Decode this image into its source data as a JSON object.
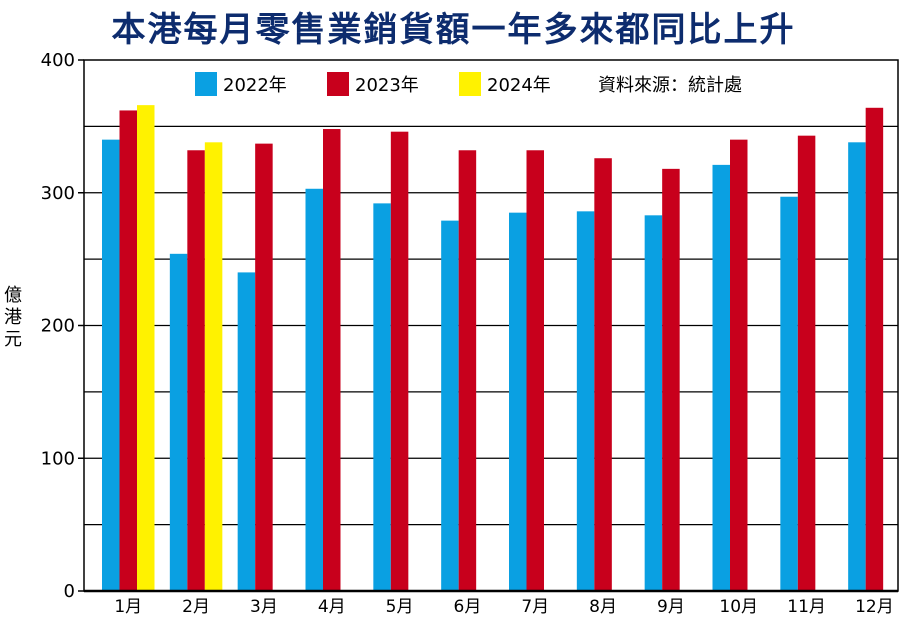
{
  "title": "本港每月零售業銷貨額一年多來都同比上升",
  "colors": {
    "2022年": "#0aa0e2",
    "2023年": "#c8001c",
    "2024年": "#fff200"
  },
  "source_note": "資料來源：統計處",
  "chart_data": {
    "type": "bar",
    "title": "本港每月零售業銷貨額一年多來都同比上升",
    "ylabel": "億港元",
    "xlabel": "",
    "ylim": [
      0,
      400
    ],
    "yticks": [
      0,
      100,
      200,
      300,
      400
    ],
    "grid": true,
    "legend": "top",
    "categories": [
      "1月",
      "2月",
      "3月",
      "4月",
      "5月",
      "6月",
      "7月",
      "8月",
      "9月",
      "10月",
      "11月",
      "12月"
    ],
    "series": [
      {
        "name": "2022年",
        "values": [
          340,
          254,
          240,
          303,
          292,
          279,
          285,
          286,
          283,
          321,
          297,
          338
        ]
      },
      {
        "name": "2023年",
        "values": [
          362,
          332,
          337,
          348,
          346,
          332,
          332,
          326,
          318,
          340,
          343,
          364
        ]
      },
      {
        "name": "2024年",
        "values": [
          366,
          338,
          null,
          null,
          null,
          null,
          null,
          null,
          null,
          null,
          null,
          null
        ]
      }
    ]
  }
}
